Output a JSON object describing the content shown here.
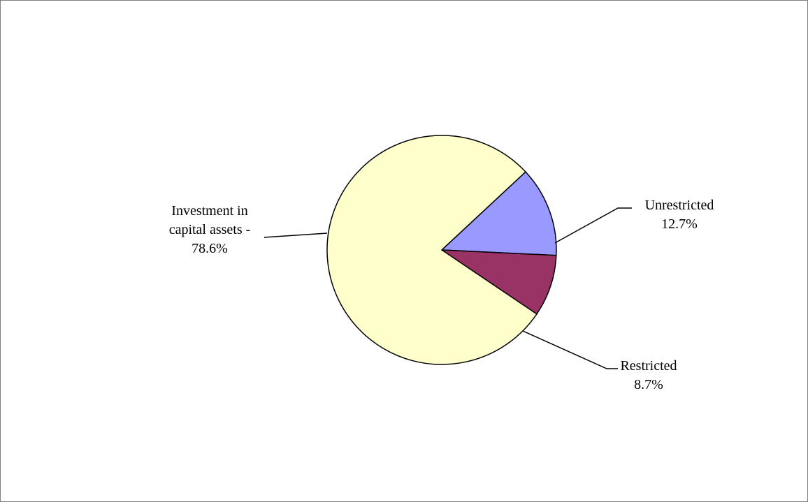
{
  "chart_data": {
    "type": "pie",
    "title": "",
    "series": [
      {
        "values": [
          78.6,
          12.7,
          8.7
        ],
        "unit": "%"
      }
    ],
    "slices": [
      {
        "lines": [
          "Investment in",
          "capital assets -",
          "78.6%"
        ],
        "value": 78.6,
        "color": "#ffffcc"
      },
      {
        "lines": [
          "Unrestricted",
          "12.7%"
        ],
        "value": 12.7,
        "color": "#9999ff"
      },
      {
        "lines": [
          "Restricted",
          "8.7%"
        ],
        "value": 8.7,
        "color": "#993366"
      }
    ],
    "legend": "none",
    "data_labels": "outside with leader lines"
  }
}
